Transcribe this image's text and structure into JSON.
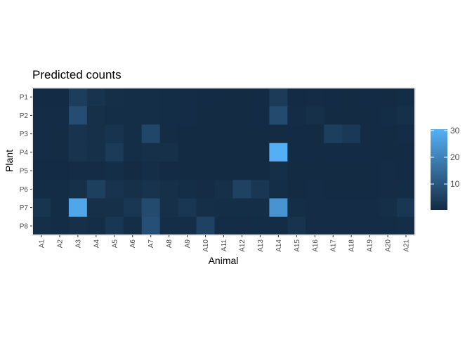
{
  "chart_data": {
    "type": "heatmap",
    "title": "Predicted counts",
    "xlabel": "Animal",
    "ylabel": "Plant",
    "x_categories": [
      "A1",
      "A2",
      "A3",
      "A4",
      "A5",
      "A6",
      "A7",
      "A8",
      "A9",
      "A10",
      "A11",
      "A12",
      "A13",
      "A14",
      "A15",
      "A16",
      "A17",
      "A18",
      "A19",
      "A20",
      "A21"
    ],
    "y_categories": [
      "P1",
      "P2",
      "P3",
      "P4",
      "P5",
      "P6",
      "P7",
      "P8"
    ],
    "values": [
      [
        0.4,
        0.4,
        4.5,
        2.0,
        1.2,
        1.0,
        1.0,
        0.8,
        0.6,
        0.4,
        0.3,
        0.3,
        0.4,
        4.0,
        0.4,
        0.6,
        0.4,
        0.5,
        0.4,
        0.5,
        0.8
      ],
      [
        0.6,
        0.6,
        8.0,
        1.5,
        1.0,
        0.9,
        1.0,
        0.8,
        0.6,
        0.5,
        0.3,
        0.3,
        0.4,
        7.5,
        0.6,
        1.5,
        0.5,
        0.5,
        0.5,
        0.8,
        1.5
      ],
      [
        0.6,
        0.7,
        2.0,
        1.5,
        2.0,
        1.0,
        6.5,
        0.7,
        0.5,
        0.3,
        0.3,
        0.3,
        0.3,
        0.3,
        0.4,
        0.5,
        4.8,
        3.5,
        0.4,
        0.5,
        0.6
      ],
      [
        0.6,
        0.7,
        2.0,
        1.5,
        4.0,
        1.0,
        1.5,
        1.5,
        0.5,
        0.3,
        0.3,
        0.3,
        0.3,
        30.0,
        0.4,
        0.5,
        0.4,
        0.4,
        0.4,
        0.5,
        0.5
      ],
      [
        0.4,
        0.4,
        0.6,
        0.6,
        1.0,
        0.5,
        0.9,
        0.4,
        0.3,
        0.3,
        0.3,
        0.3,
        0.3,
        1.2,
        0.3,
        0.3,
        0.3,
        0.3,
        0.3,
        0.6,
        0.4
      ],
      [
        0.8,
        0.8,
        1.5,
        5.0,
        2.0,
        1.5,
        2.0,
        1.5,
        1.0,
        0.6,
        1.5,
        5.5,
        3.0,
        1.0,
        0.5,
        0.6,
        0.5,
        0.5,
        0.5,
        0.6,
        0.8
      ],
      [
        2.5,
        0.8,
        28.0,
        1.5,
        1.5,
        3.0,
        7.5,
        1.5,
        3.0,
        1.2,
        1.0,
        1.0,
        1.0,
        24.0,
        0.9,
        0.6,
        0.6,
        0.6,
        0.6,
        1.2,
        3.0
      ],
      [
        1.2,
        0.8,
        1.5,
        1.0,
        3.0,
        1.0,
        8.5,
        1.0,
        1.0,
        5.5,
        0.8,
        0.6,
        0.8,
        0.8,
        2.0,
        0.6,
        0.6,
        0.6,
        0.6,
        0.8,
        1.0
      ]
    ],
    "zlim": [
      0.3,
      30.5
    ],
    "legend": {
      "ticks": [
        10,
        20,
        30
      ],
      "low_color": "#132B43",
      "high_color": "#56B1F7",
      "placement": "right"
    },
    "panel_background": "#132B43"
  }
}
